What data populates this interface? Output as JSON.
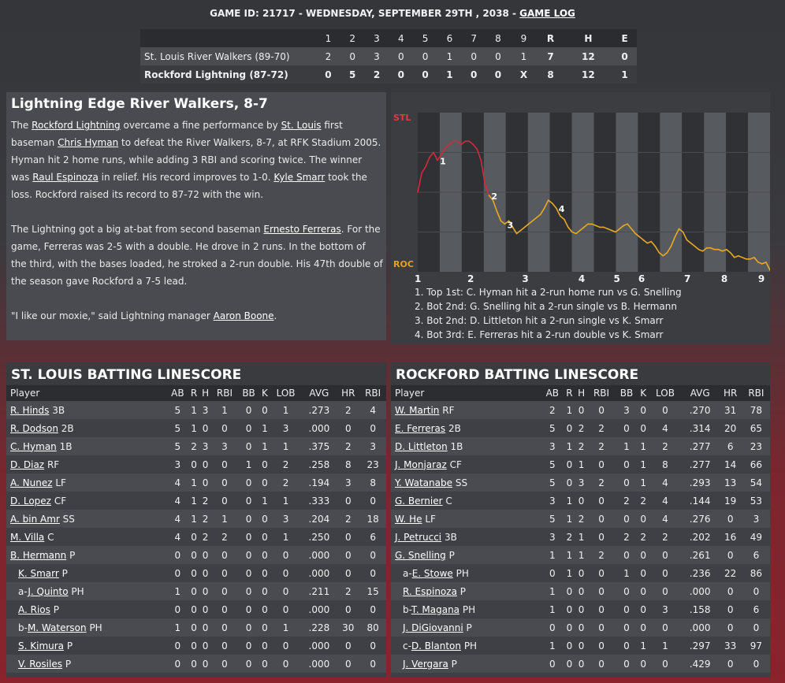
{
  "header": {
    "game_prefix": "GAME ID: 21717 - WEDNESDAY, SEPTEMBER 29TH , 2038 - ",
    "game_log_link": "GAME LOG"
  },
  "linescore": {
    "columns": [
      "1",
      "2",
      "3",
      "4",
      "5",
      "6",
      "7",
      "8",
      "9",
      "R",
      "H",
      "E"
    ],
    "rows": [
      {
        "team": "St. Louis River Walkers (89-70)",
        "cells": [
          "2",
          "0",
          "3",
          "0",
          "0",
          "1",
          "0",
          "0",
          "1",
          "7",
          "12",
          "0"
        ]
      },
      {
        "team": "Rockford Lightning (87-72)",
        "cells": [
          "0",
          "5",
          "2",
          "0",
          "0",
          "1",
          "0",
          "0",
          "X",
          "8",
          "12",
          "1"
        ]
      }
    ]
  },
  "recap": {
    "title": "Lightning Edge River Walkers, 8-7",
    "p1": {
      "t0": "The ",
      "l0": "Rockford Lightning",
      "t1": " overcame a fine performance by ",
      "l1": "St. Louis",
      "t2": " first baseman ",
      "l2": "Chris Hyman",
      "t3": " to defeat the River Walkers, 8-7, at RFK Stadium 2005. Hyman hit 2 home runs, while adding 3 RBI and scoring twice. The winner was ",
      "l3": "Raul Espinoza",
      "t4": " in relief. His record improves to 1-0. ",
      "l4": "Kyle Smarr",
      "t5": " took the loss. Rockford raised its record to 87-72 with the win."
    },
    "p2": {
      "t0": "The Lightning got a big at-bat from second baseman ",
      "l0": "Ernesto Ferreras",
      "t1": ". For the game, Ferreras was 2-5 with a double. He drove in 2 runs. In the bottom of the third, with the bases loaded, he stroked a 2-run double. His 47th double of the season gave Rockford a 7-5 lead."
    },
    "p3": {
      "t0": "\"I like our moxie,\" said Lightning manager ",
      "l0": "Aaron Boone",
      "t1": "."
    }
  },
  "chart_data": {
    "type": "line",
    "top_label": "STL",
    "bottom_label": "ROC",
    "x_ticks": [
      "1",
      "2",
      "3",
      "4",
      "5",
      "6",
      "7",
      "8",
      "9"
    ],
    "colors": {
      "stl": "#d42a3a",
      "roc": "#e8a825"
    },
    "ylim": [
      0,
      1
    ],
    "series": [
      {
        "values": [
          0.5,
          0.62,
          0.66,
          0.72,
          0.75,
          0.7,
          0.74,
          0.78,
          0.8,
          0.82,
          0.82,
          0.8,
          0.82,
          0.82,
          0.8,
          0.77,
          0.7,
          0.55,
          0.48,
          0.45,
          0.38,
          0.32,
          0.3,
          0.32,
          0.28,
          0.24,
          0.26,
          0.28,
          0.3,
          0.32,
          0.34,
          0.36,
          0.4,
          0.45,
          0.43,
          0.4,
          0.35,
          0.33,
          0.28,
          0.25,
          0.24,
          0.26,
          0.28,
          0.3,
          0.3,
          0.29,
          0.28,
          0.28,
          0.27,
          0.26,
          0.25,
          0.27,
          0.29,
          0.3,
          0.27,
          0.24,
          0.22,
          0.2,
          0.18,
          0.19,
          0.16,
          0.12,
          0.1,
          0.12,
          0.16,
          0.22,
          0.27,
          0.25,
          0.2,
          0.18,
          0.16,
          0.14,
          0.13,
          0.15,
          0.15,
          0.14,
          0.14,
          0.13,
          0.14,
          0.12,
          0.09,
          0.1,
          0.09,
          0.08,
          0.08,
          0.09,
          0.06,
          0.05,
          0.06,
          0.01
        ]
      }
    ],
    "markers": [
      {
        "label": "1",
        "index": 5
      },
      {
        "label": "2",
        "index": 18
      },
      {
        "label": "3",
        "index": 22
      },
      {
        "label": "4",
        "index": 35
      }
    ],
    "notes": [
      "1. Top 1st: C. Hyman hit a 2-run home run vs G. Snelling",
      "2. Bot 2nd: G. Snelling hit a 2-run single vs B. Hermann",
      "3. Bot 2nd: D. Littleton hit a 2-run single vs K. Smarr",
      "4. Bot 3rd: E. Ferreras hit a 2-run double vs K. Smarr"
    ]
  },
  "batting_columns": [
    "Player",
    "AB",
    "R",
    "H",
    "RBI",
    "BB",
    "K",
    "LOB",
    "AVG",
    "HR",
    "RBI"
  ],
  "stl": {
    "title": "ST. LOUIS BATTING LINESCORE",
    "rows": [
      {
        "prefix": "",
        "name": "R. Hinds",
        "pos": "3B",
        "stats": [
          "5",
          "1",
          "3",
          "1",
          "0",
          "0",
          "1",
          ".273",
          "2",
          "4"
        ]
      },
      {
        "prefix": "",
        "name": "R. Dodson",
        "pos": "2B",
        "stats": [
          "5",
          "1",
          "0",
          "0",
          "0",
          "1",
          "3",
          ".000",
          "0",
          "0"
        ]
      },
      {
        "prefix": "",
        "name": "C. Hyman",
        "pos": "1B",
        "stats": [
          "5",
          "2",
          "3",
          "3",
          "0",
          "1",
          "1",
          ".375",
          "2",
          "3"
        ]
      },
      {
        "prefix": "",
        "name": "D. Diaz",
        "pos": "RF",
        "stats": [
          "3",
          "0",
          "0",
          "0",
          "1",
          "0",
          "2",
          ".258",
          "8",
          "23"
        ]
      },
      {
        "prefix": "",
        "name": "A. Nunez",
        "pos": "LF",
        "stats": [
          "4",
          "1",
          "0",
          "0",
          "0",
          "0",
          "2",
          ".194",
          "3",
          "8"
        ]
      },
      {
        "prefix": "",
        "name": "D. Lopez",
        "pos": "CF",
        "stats": [
          "4",
          "1",
          "2",
          "0",
          "0",
          "1",
          "1",
          ".333",
          "0",
          "0"
        ]
      },
      {
        "prefix": "",
        "name": "A. bin Amr",
        "pos": "SS",
        "stats": [
          "4",
          "1",
          "2",
          "1",
          "0",
          "0",
          "3",
          ".204",
          "2",
          "18"
        ]
      },
      {
        "prefix": "",
        "name": "M. Villa",
        "pos": "C",
        "stats": [
          "4",
          "0",
          "2",
          "2",
          "0",
          "0",
          "1",
          ".250",
          "0",
          "6"
        ]
      },
      {
        "prefix": "",
        "name": "B. Hermann",
        "pos": "P",
        "stats": [
          "0",
          "0",
          "0",
          "0",
          "0",
          "0",
          "0",
          ".000",
          "0",
          "0"
        ]
      },
      {
        "prefix": "",
        "name": "K. Smarr",
        "pos": "P",
        "sub": true,
        "stats": [
          "0",
          "0",
          "0",
          "0",
          "0",
          "0",
          "0",
          ".000",
          "0",
          "0"
        ]
      },
      {
        "prefix": "a-",
        "name": "J. Quinto",
        "pos": "PH",
        "sub": true,
        "stats": [
          "1",
          "0",
          "0",
          "0",
          "0",
          "0",
          "0",
          ".211",
          "2",
          "15"
        ]
      },
      {
        "prefix": "",
        "name": "A. Rios",
        "pos": "P",
        "sub": true,
        "stats": [
          "0",
          "0",
          "0",
          "0",
          "0",
          "0",
          "0",
          ".000",
          "0",
          "0"
        ]
      },
      {
        "prefix": "b-",
        "name": "M. Waterson",
        "pos": "PH",
        "sub": true,
        "stats": [
          "1",
          "0",
          "0",
          "0",
          "0",
          "0",
          "1",
          ".228",
          "30",
          "80"
        ]
      },
      {
        "prefix": "",
        "name": "S. Kimura",
        "pos": "P",
        "sub": true,
        "stats": [
          "0",
          "0",
          "0",
          "0",
          "0",
          "0",
          "0",
          ".000",
          "0",
          "0"
        ]
      },
      {
        "prefix": "",
        "name": "V. Rosiles",
        "pos": "P",
        "sub": true,
        "stats": [
          "0",
          "0",
          "0",
          "0",
          "0",
          "0",
          "0",
          ".000",
          "0",
          "0"
        ]
      }
    ]
  },
  "roc": {
    "title": "ROCKFORD BATTING LINESCORE",
    "rows": [
      {
        "prefix": "",
        "name": "W. Martin",
        "pos": "RF",
        "stats": [
          "2",
          "1",
          "0",
          "0",
          "3",
          "0",
          "0",
          ".270",
          "31",
          "78"
        ]
      },
      {
        "prefix": "",
        "name": "E. Ferreras",
        "pos": "2B",
        "stats": [
          "5",
          "0",
          "2",
          "2",
          "0",
          "0",
          "4",
          ".314",
          "20",
          "65"
        ]
      },
      {
        "prefix": "",
        "name": "D. Littleton",
        "pos": "1B",
        "stats": [
          "3",
          "1",
          "2",
          "2",
          "1",
          "1",
          "2",
          ".277",
          "6",
          "23"
        ]
      },
      {
        "prefix": "",
        "name": "J. Monjaraz",
        "pos": "CF",
        "stats": [
          "5",
          "0",
          "1",
          "0",
          "0",
          "1",
          "8",
          ".277",
          "14",
          "66"
        ]
      },
      {
        "prefix": "",
        "name": "Y. Watanabe",
        "pos": "SS",
        "stats": [
          "5",
          "0",
          "3",
          "2",
          "0",
          "1",
          "4",
          ".293",
          "13",
          "54"
        ]
      },
      {
        "prefix": "",
        "name": "G. Bernier",
        "pos": "C",
        "stats": [
          "3",
          "1",
          "0",
          "0",
          "2",
          "2",
          "4",
          ".144",
          "19",
          "53"
        ]
      },
      {
        "prefix": "",
        "name": "W. He",
        "pos": "LF",
        "stats": [
          "5",
          "1",
          "2",
          "0",
          "0",
          "0",
          "4",
          ".276",
          "0",
          "3"
        ]
      },
      {
        "prefix": "",
        "name": "J. Petrucci",
        "pos": "3B",
        "stats": [
          "3",
          "2",
          "1",
          "0",
          "2",
          "2",
          "2",
          ".202",
          "16",
          "49"
        ]
      },
      {
        "prefix": "",
        "name": "G. Snelling",
        "pos": "P",
        "stats": [
          "1",
          "1",
          "1",
          "2",
          "0",
          "0",
          "0",
          ".261",
          "0",
          "6"
        ]
      },
      {
        "prefix": "a-",
        "name": "E. Stowe",
        "pos": "PH",
        "sub": true,
        "stats": [
          "0",
          "1",
          "0",
          "0",
          "1",
          "0",
          "0",
          ".236",
          "22",
          "86"
        ]
      },
      {
        "prefix": "",
        "name": "R. Espinoza",
        "pos": "P",
        "sub": true,
        "stats": [
          "1",
          "0",
          "0",
          "0",
          "0",
          "0",
          "0",
          ".000",
          "0",
          "0"
        ]
      },
      {
        "prefix": "b-",
        "name": "T. Magana",
        "pos": "PH",
        "sub": true,
        "stats": [
          "1",
          "0",
          "0",
          "0",
          "0",
          "0",
          "3",
          ".158",
          "0",
          "6"
        ]
      },
      {
        "prefix": "",
        "name": "J. DiGiovanni",
        "pos": "P",
        "sub": true,
        "stats": [
          "0",
          "0",
          "0",
          "0",
          "0",
          "0",
          "0",
          ".000",
          "0",
          "0"
        ]
      },
      {
        "prefix": "c-",
        "name": "D. Blanton",
        "pos": "PH",
        "sub": true,
        "stats": [
          "1",
          "0",
          "0",
          "0",
          "0",
          "1",
          "1",
          ".297",
          "33",
          "97"
        ]
      },
      {
        "prefix": "",
        "name": "J. Vergara",
        "pos": "P",
        "sub": true,
        "stats": [
          "0",
          "0",
          "0",
          "0",
          "0",
          "0",
          "0",
          ".429",
          "0",
          "0"
        ]
      }
    ]
  }
}
